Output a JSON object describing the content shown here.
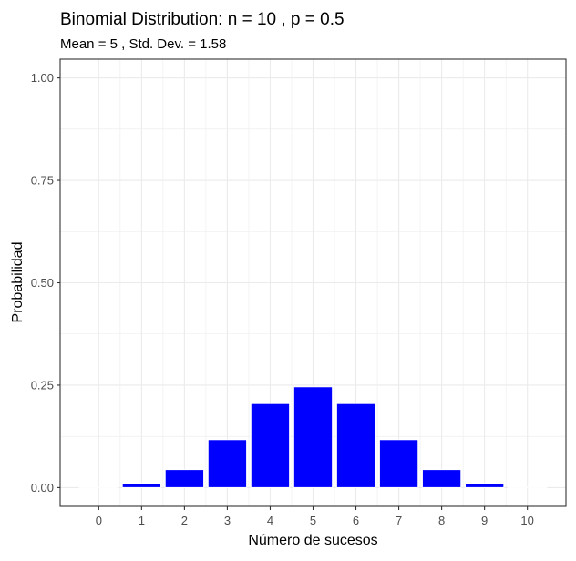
{
  "chart_data": {
    "type": "bar",
    "title": "Binomial Distribution: n = 10 , p = 0.5",
    "subtitle": "Mean = 5 , Std. Dev. = 1.58",
    "xlabel": "Número de sucesos",
    "ylabel": "Probabilidad",
    "x": [
      0,
      1,
      2,
      3,
      4,
      5,
      6,
      7,
      8,
      9,
      10
    ],
    "values": [
      0.001,
      0.01,
      0.044,
      0.117,
      0.205,
      0.246,
      0.205,
      0.117,
      0.044,
      0.01,
      0.001
    ],
    "x_tick_labels": [
      "0",
      "1",
      "2",
      "3",
      "4",
      "5",
      "6",
      "7",
      "8",
      "9",
      "10"
    ],
    "y_ticks": [
      0,
      0.25,
      0.5,
      0.75,
      1.0
    ],
    "y_tick_labels": [
      "0.00",
      "0.25",
      "0.50",
      "0.75",
      "1.00"
    ],
    "ylim": [
      0,
      1.0
    ],
    "grid": true,
    "legend": "none",
    "colors": {
      "bar_fill": "#0000ff",
      "bar_stroke": "#ffffff",
      "grid": "#ebebeb",
      "panel_border": "#333333",
      "tick_label": "#4d4d4d",
      "text": "#000000",
      "background": "#ffffff"
    }
  }
}
